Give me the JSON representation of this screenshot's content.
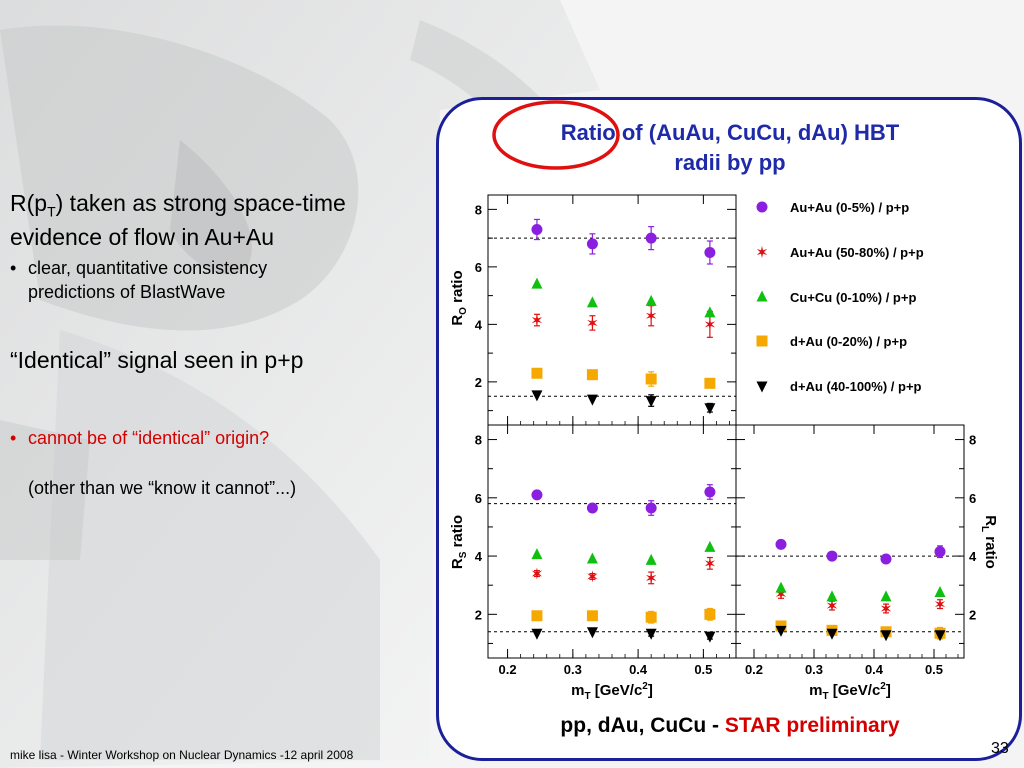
{
  "slide": {
    "left_text": {
      "line1_prefix": "R(p",
      "line1_sub": "T",
      "line1_suffix": ") taken as strong space-time",
      "line2": "evidence of flow in Au+Au",
      "bullet1_line1": "clear, quantitative consistency",
      "bullet1_line2": "predictions of BlastWave",
      "line3": "“Identical” signal seen in p+p",
      "bullet2": "cannot be of “identical” origin?",
      "bullet2_cont": "(other than we “know it cannot”...)",
      "bullet_char": "•"
    },
    "title_line1": "Ratio of (AuAu, CuCu, dAu) HBT",
    "title_line2": "radii by pp",
    "bottom_label_prefix": "pp, dAu, CuCu -",
    "bottom_label_red": "STAR preliminary",
    "footer": "mike lisa - Winter Workshop on Nuclear Dynamics -12 april 2008",
    "page_number": "33"
  },
  "colors": {
    "frame": "#1b1f9a",
    "title": "#1e2aa8",
    "red_text": "#d40000",
    "circle_highlight": "#e01010"
  },
  "chart_data": [
    {
      "type": "scatter",
      "panel": "top-left",
      "ylabel": "R_O ratio",
      "ylim": [
        0.5,
        8.5
      ],
      "xlim": [
        0.17,
        0.55
      ],
      "reference_lines": [
        7.0,
        1.5
      ],
      "series": [
        {
          "name": "Au+Au (0-5%) / p+p",
          "marker": "circle",
          "color": "#8b1fe0",
          "x": [
            0.245,
            0.33,
            0.42,
            0.51
          ],
          "y": [
            7.3,
            6.8,
            7.0,
            6.5
          ],
          "err": [
            0.35,
            0.35,
            0.4,
            0.4
          ]
        },
        {
          "name": "Au+Au (50-80%) / p+p",
          "marker": "star",
          "color": "#e01010",
          "x": [
            0.245,
            0.33,
            0.42,
            0.51
          ],
          "y": [
            4.15,
            4.05,
            4.3,
            4.0
          ],
          "err": [
            0.2,
            0.25,
            0.35,
            0.45
          ]
        },
        {
          "name": "Cu+Cu (0-10%) / p+p",
          "marker": "triangle-up",
          "color": "#10c010",
          "x": [
            0.245,
            0.33,
            0.42,
            0.51
          ],
          "y": [
            5.4,
            4.75,
            4.8,
            4.4
          ],
          "err": [
            0,
            0,
            0,
            0
          ]
        },
        {
          "name": "d+Au (0-20%) / p+p",
          "marker": "square",
          "color": "#f5a800",
          "x": [
            0.245,
            0.33,
            0.42,
            0.51
          ],
          "y": [
            2.3,
            2.25,
            2.1,
            1.95
          ],
          "err": [
            0.15,
            0.15,
            0.25,
            0.15
          ]
        },
        {
          "name": "d+Au (40-100%) / p+p",
          "marker": "triangle-down",
          "color": "#000000",
          "x": [
            0.245,
            0.33,
            0.42,
            0.51
          ],
          "y": [
            1.55,
            1.4,
            1.35,
            1.1
          ],
          "err": [
            0,
            0,
            0.2,
            0.15
          ]
        }
      ]
    },
    {
      "type": "scatter",
      "panel": "bottom-left",
      "ylabel": "R_S ratio",
      "xlabel": "m_T [GeV/c^2]",
      "ylim": [
        0.5,
        8.5
      ],
      "xlim": [
        0.17,
        0.55
      ],
      "x_ticks": [
        "0.2",
        "0.3",
        "0.4",
        "0.5"
      ],
      "reference_lines": [
        5.8,
        1.4
      ],
      "series": [
        {
          "name": "Au+Au (0-5%) / p+p",
          "x": [
            0.245,
            0.33,
            0.42,
            0.51
          ],
          "y": [
            6.1,
            5.65,
            5.65,
            6.2
          ],
          "err": [
            0.12,
            0.1,
            0.25,
            0.25
          ]
        },
        {
          "name": "Au+Au (50-80%) / p+p",
          "x": [
            0.245,
            0.33,
            0.42,
            0.51
          ],
          "y": [
            3.4,
            3.3,
            3.25,
            3.75
          ],
          "err": [
            0.1,
            0.1,
            0.2,
            0.2
          ]
        },
        {
          "name": "Cu+Cu (0-10%) / p+p",
          "x": [
            0.245,
            0.33,
            0.42,
            0.51
          ],
          "y": [
            4.05,
            3.9,
            3.85,
            4.3
          ],
          "err": [
            0,
            0,
            0,
            0
          ]
        },
        {
          "name": "d+Au (0-20%) / p+p",
          "x": [
            0.245,
            0.33,
            0.42,
            0.51
          ],
          "y": [
            1.95,
            1.95,
            1.9,
            2.0
          ],
          "err": [
            0.1,
            0.15,
            0.2,
            0.2
          ]
        },
        {
          "name": "d+Au (40-100%) / p+p",
          "x": [
            0.245,
            0.33,
            0.42,
            0.51
          ],
          "y": [
            1.35,
            1.4,
            1.35,
            1.25
          ],
          "err": [
            0,
            0,
            0.1,
            0.1
          ]
        }
      ]
    },
    {
      "type": "scatter",
      "panel": "bottom-right",
      "ylabel": "R_L ratio",
      "xlabel": "m_T [GeV/c^2]",
      "ylim": [
        0.5,
        8.5
      ],
      "xlim": [
        0.17,
        0.55
      ],
      "x_ticks": [
        "0.2",
        "0.3",
        "0.4",
        "0.5"
      ],
      "reference_lines": [
        4.0,
        1.4
      ],
      "series": [
        {
          "name": "Au+Au (0-5%) / p+p",
          "x": [
            0.245,
            0.33,
            0.42,
            0.51
          ],
          "y": [
            4.4,
            4.0,
            3.9,
            4.15
          ],
          "err": [
            0.1,
            0.08,
            0.12,
            0.2
          ]
        },
        {
          "name": "Au+Au (50-80%) / p+p",
          "x": [
            0.245,
            0.33,
            0.42,
            0.51
          ],
          "y": [
            2.7,
            2.3,
            2.2,
            2.35
          ],
          "err": [
            0.15,
            0.15,
            0.15,
            0.15
          ]
        },
        {
          "name": "Cu+Cu (0-10%) / p+p",
          "x": [
            0.245,
            0.33,
            0.42,
            0.51
          ],
          "y": [
            2.9,
            2.6,
            2.6,
            2.75
          ],
          "err": [
            0,
            0,
            0,
            0
          ]
        },
        {
          "name": "d+Au (0-20%) / p+p",
          "x": [
            0.245,
            0.33,
            0.42,
            0.51
          ],
          "y": [
            1.6,
            1.45,
            1.4,
            1.35
          ],
          "err": [
            0.1,
            0.1,
            0.1,
            0.2
          ]
        },
        {
          "name": "d+Au (40-100%) / p+p",
          "x": [
            0.245,
            0.33,
            0.42,
            0.51
          ],
          "y": [
            1.45,
            1.35,
            1.3,
            1.3
          ],
          "err": [
            0,
            0,
            0,
            0
          ]
        }
      ]
    }
  ],
  "axis_text": {
    "y_ticks": [
      "2",
      "4",
      "6",
      "8"
    ],
    "x_ticks": [
      "0.2",
      "0.3",
      "0.4",
      "0.5"
    ],
    "ro_label_main": "R",
    "ro_label_sub": "O",
    "ro_label_rest": " ratio",
    "rs_label_sub": "S",
    "rl_label_sub": "L",
    "xlabel_main": "m",
    "xlabel_sub": "T",
    "xlabel_rest": " [GeV/c",
    "xlabel_sup": "2",
    "xlabel_close": "]"
  }
}
